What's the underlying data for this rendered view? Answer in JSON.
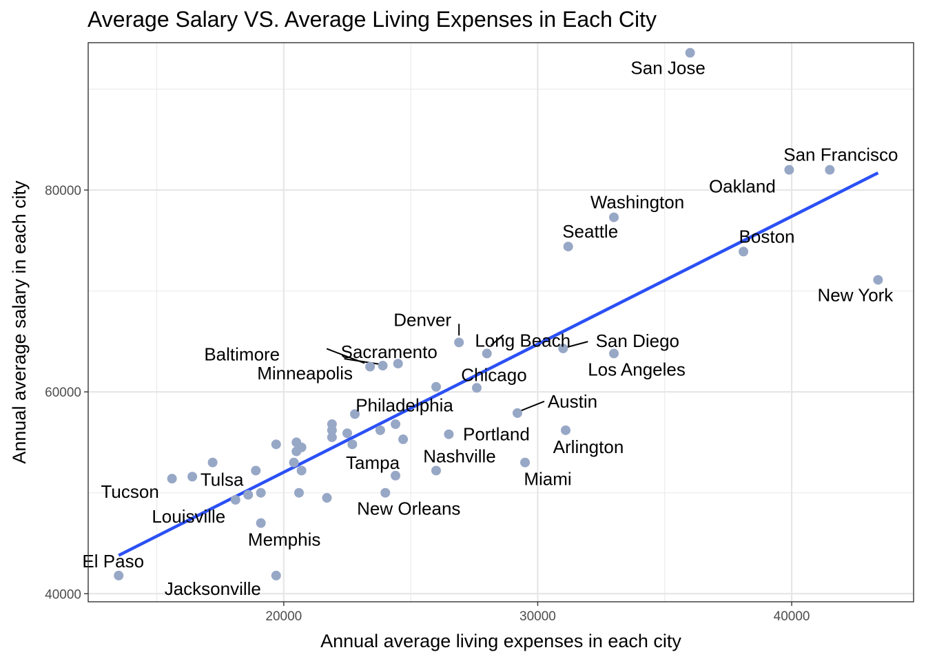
{
  "chart_data": {
    "type": "scatter",
    "title": "Average Salary VS. Average Living Expenses in Each City",
    "xlabel": "Annual average living expenses in each city",
    "ylabel": "Annual average salary in each city",
    "xlim": [
      12300,
      44800
    ],
    "ylim": [
      39200,
      94600
    ],
    "x_ticks": [
      20000,
      30000,
      40000
    ],
    "y_ticks": [
      40000,
      60000,
      80000
    ],
    "grid": true,
    "point_color": "#97a7c6",
    "trend_color": "#2b50f5",
    "trend_line": {
      "x": [
        13500,
        43400
      ],
      "y": [
        43800,
        81700
      ]
    },
    "points": [
      {
        "x": 36000,
        "y": 93600,
        "label": "San Jose"
      },
      {
        "x": 39900,
        "y": 82000,
        "label": "Oakland"
      },
      {
        "x": 41500,
        "y": 82000,
        "label": "San Francisco"
      },
      {
        "x": 33000,
        "y": 77300,
        "label": "Washington"
      },
      {
        "x": 31200,
        "y": 74400,
        "label": "Seattle"
      },
      {
        "x": 38100,
        "y": 73900,
        "label": "Boston"
      },
      {
        "x": 43400,
        "y": 71100,
        "label": "New York"
      },
      {
        "x": 26900,
        "y": 64900,
        "label": "Denver"
      },
      {
        "x": 28000,
        "y": 63800,
        "label": "Long Beach"
      },
      {
        "x": 31000,
        "y": 64300,
        "label": "San Diego"
      },
      {
        "x": 33000,
        "y": 63800,
        "label": "Los Angeles"
      },
      {
        "x": 23400,
        "y": 62500,
        "label": "Baltimore"
      },
      {
        "x": 23900,
        "y": 62600,
        "label": "Minneapolis"
      },
      {
        "x": 24500,
        "y": 62800,
        "label": "Sacramento"
      },
      {
        "x": 27600,
        "y": 60400,
        "label": "Chicago"
      },
      {
        "x": 26000,
        "y": 60500,
        "label": ""
      },
      {
        "x": 29200,
        "y": 57900,
        "label": "Austin"
      },
      {
        "x": 22800,
        "y": 57800,
        "label": "Philadelphia"
      },
      {
        "x": 31100,
        "y": 56200,
        "label": "Arlington"
      },
      {
        "x": 26500,
        "y": 55800,
        "label": "Portland"
      },
      {
        "x": 24400,
        "y": 56800,
        "label": ""
      },
      {
        "x": 23800,
        "y": 56200,
        "label": ""
      },
      {
        "x": 24700,
        "y": 55300,
        "label": ""
      },
      {
        "x": 22500,
        "y": 55900,
        "label": ""
      },
      {
        "x": 21900,
        "y": 56800,
        "label": ""
      },
      {
        "x": 21900,
        "y": 56200,
        "label": ""
      },
      {
        "x": 21900,
        "y": 55500,
        "label": ""
      },
      {
        "x": 22700,
        "y": 54800,
        "label": ""
      },
      {
        "x": 29500,
        "y": 53000,
        "label": "Miami"
      },
      {
        "x": 26000,
        "y": 52200,
        "label": "Nashville"
      },
      {
        "x": 24400,
        "y": 51700,
        "label": "Tampa"
      },
      {
        "x": 24000,
        "y": 50000,
        "label": "New Orleans"
      },
      {
        "x": 19700,
        "y": 54800,
        "label": ""
      },
      {
        "x": 20500,
        "y": 55000,
        "label": ""
      },
      {
        "x": 20700,
        "y": 54500,
        "label": ""
      },
      {
        "x": 20500,
        "y": 54100,
        "label": ""
      },
      {
        "x": 20400,
        "y": 53000,
        "label": ""
      },
      {
        "x": 20700,
        "y": 52200,
        "label": ""
      },
      {
        "x": 18900,
        "y": 52200,
        "label": ""
      },
      {
        "x": 17200,
        "y": 53000,
        "label": ""
      },
      {
        "x": 16400,
        "y": 51600,
        "label": "Tulsa"
      },
      {
        "x": 15600,
        "y": 51400,
        "label": "Tucson"
      },
      {
        "x": 18100,
        "y": 49300,
        "label": "Louisville"
      },
      {
        "x": 18600,
        "y": 49800,
        "label": ""
      },
      {
        "x": 19100,
        "y": 50000,
        "label": ""
      },
      {
        "x": 20600,
        "y": 50000,
        "label": ""
      },
      {
        "x": 21700,
        "y": 49500,
        "label": ""
      },
      {
        "x": 19100,
        "y": 47000,
        "label": "Memphis"
      },
      {
        "x": 19700,
        "y": 41800,
        "label": "Jacksonville"
      },
      {
        "x": 13500,
        "y": 41800,
        "label": "El Paso"
      }
    ]
  }
}
